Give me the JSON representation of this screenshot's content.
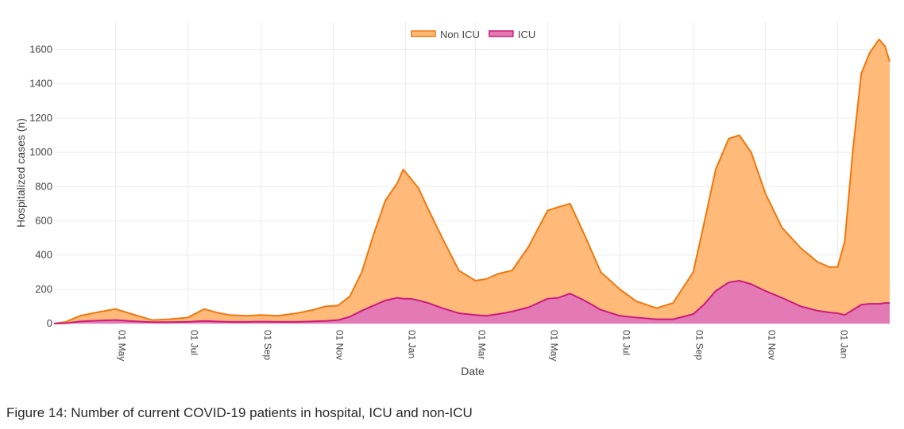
{
  "caption": "Figure 14: Number of current COVID-19 patients in hospital, ICU and non-ICU",
  "chart_data": {
    "type": "area",
    "stacked": true,
    "xlabel": "Date",
    "ylabel": "Hospitalized cases (n)",
    "ylim": [
      0,
      1760
    ],
    "yticks": [
      0,
      200,
      400,
      600,
      800,
      1000,
      1200,
      1400,
      1600
    ],
    "xlim": [
      "2020-03-10",
      "2022-02-14"
    ],
    "xticks": [
      {
        "date": "2020-05-01",
        "label": "01 May"
      },
      {
        "date": "2020-07-01",
        "label": "01 Jul"
      },
      {
        "date": "2020-09-01",
        "label": "01 Sep"
      },
      {
        "date": "2020-11-01",
        "label": "01 Nov"
      },
      {
        "date": "2021-01-01",
        "label": "01 Jan"
      },
      {
        "date": "2021-03-01",
        "label": "01 Mar"
      },
      {
        "date": "2021-05-01",
        "label": "01 May"
      },
      {
        "date": "2021-07-01",
        "label": "01 Jul"
      },
      {
        "date": "2021-09-01",
        "label": "01 Sep"
      },
      {
        "date": "2021-11-01",
        "label": "01 Nov"
      },
      {
        "date": "2022-01-01",
        "label": "01 Jan"
      }
    ],
    "grid": true,
    "legend_position": "top-center",
    "x": [
      "2020-03-10",
      "2020-03-20",
      "2020-04-01",
      "2020-04-15",
      "2020-05-01",
      "2020-05-15",
      "2020-06-01",
      "2020-06-15",
      "2020-07-01",
      "2020-07-15",
      "2020-07-25",
      "2020-08-05",
      "2020-08-20",
      "2020-09-01",
      "2020-09-15",
      "2020-10-01",
      "2020-10-15",
      "2020-10-25",
      "2020-11-05",
      "2020-11-15",
      "2020-11-25",
      "2020-12-05",
      "2020-12-15",
      "2020-12-25",
      "2020-12-30",
      "2021-01-05",
      "2021-01-12",
      "2021-01-20",
      "2021-02-01",
      "2021-02-15",
      "2021-03-01",
      "2021-03-10",
      "2021-03-20",
      "2021-04-01",
      "2021-04-15",
      "2021-05-01",
      "2021-05-10",
      "2021-05-20",
      "2021-06-01",
      "2021-06-15",
      "2021-07-01",
      "2021-07-15",
      "2021-08-01",
      "2021-08-15",
      "2021-09-01",
      "2021-09-10",
      "2021-09-20",
      "2021-10-01",
      "2021-10-10",
      "2021-10-20",
      "2021-11-01",
      "2021-11-15",
      "2021-12-01",
      "2021-12-15",
      "2021-12-25",
      "2022-01-01",
      "2022-01-07",
      "2022-01-14",
      "2022-01-21",
      "2022-01-28",
      "2022-02-05",
      "2022-02-10",
      "2022-02-14"
    ],
    "series": [
      {
        "name": "Non ICU",
        "color": "#f0780e",
        "fill": "#ffb978",
        "values": [
          0,
          10,
          45,
          65,
          85,
          55,
          20,
          25,
          35,
          85,
          65,
          50,
          45,
          50,
          45,
          60,
          80,
          100,
          105,
          160,
          300,
          520,
          720,
          820,
          900,
          850,
          790,
          670,
          500,
          310,
          250,
          260,
          290,
          310,
          450,
          660,
          680,
          700,
          520,
          300,
          200,
          130,
          90,
          120,
          300,
          580,
          900,
          1080,
          1100,
          1000,
          760,
          560,
          440,
          360,
          330,
          330,
          480,
          1020,
          1460,
          1580,
          1660,
          1620,
          1530
        ]
      },
      {
        "name": "ICU",
        "color": "#cc1a7d",
        "fill": "#e47ab5",
        "values": [
          0,
          2,
          12,
          17,
          20,
          14,
          8,
          8,
          10,
          15,
          12,
          10,
          10,
          11,
          10,
          10,
          13,
          15,
          20,
          40,
          75,
          105,
          135,
          150,
          145,
          145,
          135,
          120,
          90,
          60,
          50,
          45,
          55,
          70,
          95,
          145,
          150,
          175,
          135,
          80,
          45,
          35,
          25,
          25,
          55,
          110,
          190,
          240,
          250,
          230,
          190,
          150,
          100,
          75,
          65,
          60,
          50,
          80,
          110,
          115,
          115,
          120,
          120
        ]
      }
    ]
  }
}
